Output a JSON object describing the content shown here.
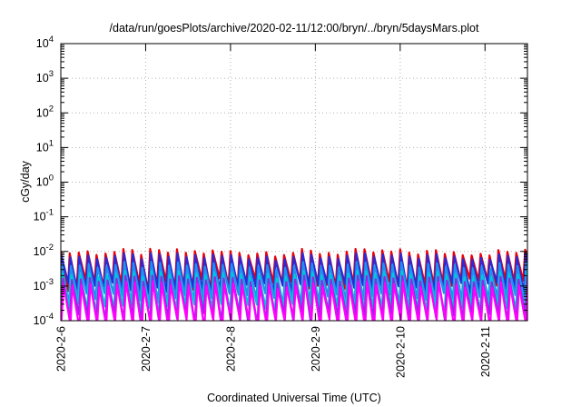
{
  "chart_data": {
    "type": "line",
    "title": "/data/run/goesPlots/archive/2020-02-11/12:00/bryn/../bryn/5daysMars.plot",
    "xlabel": "Coordinated Universal Time (UTC)",
    "ylabel": "cGy/day",
    "yscale": "log",
    "ylim": [
      0.0001,
      10000
    ],
    "xlim": [
      "2020-02-06T00:00",
      "2020-02-11T12:00"
    ],
    "x_ticks": [
      "2020-2-6",
      "2020-2-7",
      "2020-2-8",
      "2020-2-9",
      "2020-2-10",
      "2020-2-11"
    ],
    "y_ticks": [
      {
        "base": "10",
        "exp": "-4",
        "value": 0.0001
      },
      {
        "base": "10",
        "exp": "-3",
        "value": 0.001
      },
      {
        "base": "10",
        "exp": "-2",
        "value": 0.01
      },
      {
        "base": "10",
        "exp": "-1",
        "value": 0.1
      },
      {
        "base": "10",
        "exp": "0",
        "value": 1
      },
      {
        "base": "10",
        "exp": "1",
        "value": 10
      },
      {
        "base": "10",
        "exp": "2",
        "value": 100
      },
      {
        "base": "10",
        "exp": "3",
        "value": 1000
      },
      {
        "base": "10",
        "exp": "4",
        "value": 10000
      }
    ],
    "grid": true,
    "pattern": {
      "cycles_per_day": 9.5,
      "baseline_series": [
        {
          "color": "#e8000b",
          "peak": 0.0095,
          "trough": 0.0012
        },
        {
          "color": "#2a2ad6",
          "peak": 0.0072,
          "trough": 0.0009
        },
        {
          "color": "#2090f0",
          "peak": 0.004,
          "trough": 0.00045
        },
        {
          "color": "#00c8d8",
          "peak": 0.0022,
          "trough": 0.00022
        },
        {
          "color": "#8a2be2",
          "peak": 0.0016,
          "trough": 0.00012
        },
        {
          "color": "#ff00ff",
          "peak": 0.0011,
          "trough": 8e-05
        }
      ]
    }
  }
}
